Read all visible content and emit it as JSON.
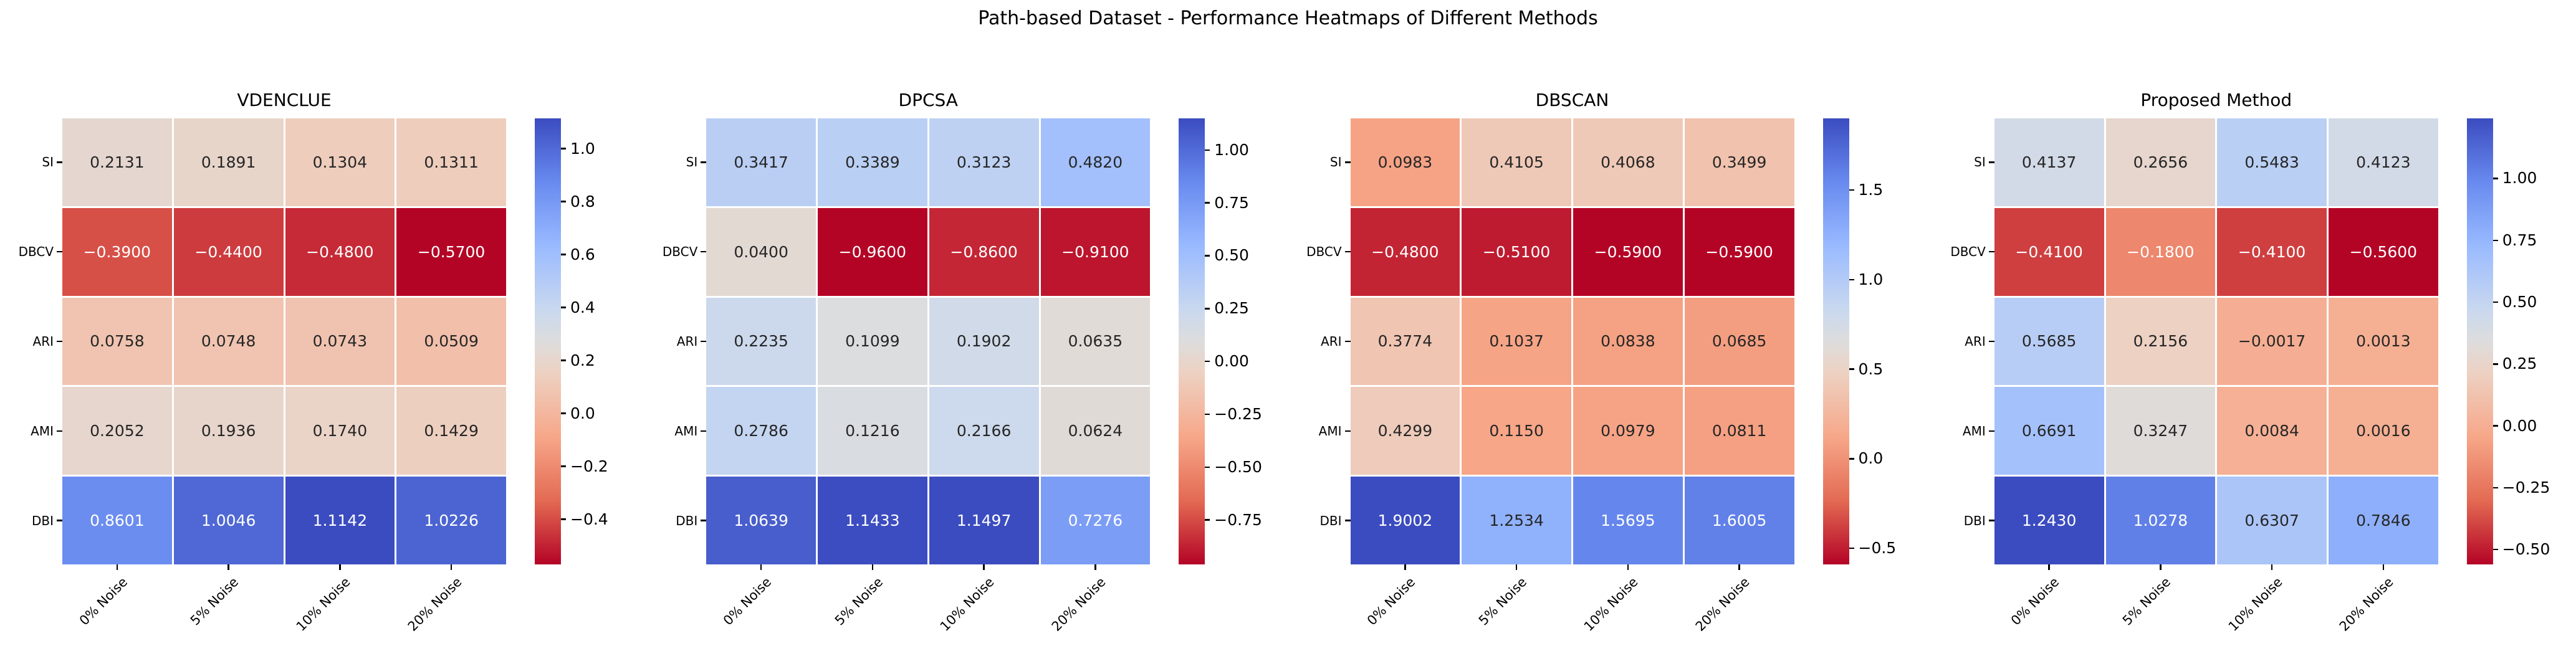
{
  "figure_title": "Path-based Dataset - Performance Heatmaps of Different Methods",
  "row_labels": [
    "SI",
    "DBCV",
    "ARI",
    "AMI",
    "DBI"
  ],
  "col_labels": [
    "0% Noise",
    "5% Noise",
    "10% Noise",
    "20% Noise"
  ],
  "colors": {
    "background": "#ffffff",
    "annotation_dark": "#262626",
    "annotation_light": "#ffffff",
    "tick_color": "#000000",
    "colormap_name": "coolwarm-reversed",
    "colormap_stops": [
      {
        "t": 0.0,
        "color": "#b40426"
      },
      {
        "t": 0.1429,
        "color": "#e36a53"
      },
      {
        "t": 0.2857,
        "color": "#f7a789"
      },
      {
        "t": 0.4286,
        "color": "#edd1c2"
      },
      {
        "t": 0.5,
        "color": "#dddddd"
      },
      {
        "t": 0.5714,
        "color": "#c9d8ef"
      },
      {
        "t": 0.7143,
        "color": "#99baff"
      },
      {
        "t": 0.8571,
        "color": "#688aef"
      },
      {
        "t": 1.0,
        "color": "#3b4cc0"
      }
    ]
  },
  "chart_data": [
    {
      "type": "heatmap",
      "title": "VDENCLUE",
      "rows": [
        "SI",
        "DBCV",
        "ARI",
        "AMI",
        "DBI"
      ],
      "columns": [
        "0% Noise",
        "5% Noise",
        "10% Noise",
        "20% Noise"
      ],
      "values": [
        [
          0.2131,
          0.1891,
          0.1304,
          0.1311
        ],
        [
          -0.39,
          -0.44,
          -0.48,
          -0.57
        ],
        [
          0.0758,
          0.0748,
          0.0743,
          0.0509
        ],
        [
          0.2052,
          0.1936,
          0.174,
          0.1429
        ],
        [
          0.8601,
          1.0046,
          1.1142,
          1.0226
        ]
      ],
      "value_decimals": 4,
      "colorbar_ticks": [
        1.0,
        0.8,
        0.6,
        0.4,
        0.2,
        0.0,
        -0.2,
        -0.4
      ],
      "tick_decimals": 1,
      "legend_position": "right"
    },
    {
      "type": "heatmap",
      "title": "DPCSA",
      "rows": [
        "SI",
        "DBCV",
        "ARI",
        "AMI",
        "DBI"
      ],
      "columns": [
        "0% Noise",
        "5% Noise",
        "10% Noise",
        "20% Noise"
      ],
      "values": [
        [
          0.3417,
          0.3389,
          0.3123,
          0.482
        ],
        [
          0.04,
          -0.96,
          -0.86,
          -0.91
        ],
        [
          0.2235,
          0.1099,
          0.1902,
          0.0635
        ],
        [
          0.2786,
          0.1216,
          0.2166,
          0.0624
        ],
        [
          1.0639,
          1.1433,
          1.1497,
          0.7276
        ]
      ],
      "value_decimals": 4,
      "colorbar_ticks": [
        1.0,
        0.75,
        0.5,
        0.25,
        0.0,
        -0.25,
        -0.5,
        -0.75
      ],
      "tick_decimals": 2,
      "legend_position": "right"
    },
    {
      "type": "heatmap",
      "title": "DBSCAN",
      "rows": [
        "SI",
        "DBCV",
        "ARI",
        "AMI",
        "DBI"
      ],
      "columns": [
        "0% Noise",
        "5% Noise",
        "10% Noise",
        "20% Noise"
      ],
      "values": [
        [
          0.0983,
          0.4105,
          0.4068,
          0.3499
        ],
        [
          -0.48,
          -0.51,
          -0.59,
          -0.59
        ],
        [
          0.3774,
          0.1037,
          0.0838,
          0.0685
        ],
        [
          0.4299,
          0.115,
          0.0979,
          0.0811
        ],
        [
          1.9002,
          1.2534,
          1.5695,
          1.6005
        ]
      ],
      "value_decimals": 4,
      "colorbar_ticks": [
        1.5,
        1.0,
        0.5,
        0.0,
        -0.5
      ],
      "tick_decimals": 1,
      "legend_position": "right"
    },
    {
      "type": "heatmap",
      "title": "Proposed Method",
      "rows": [
        "SI",
        "DBCV",
        "ARI",
        "AMI",
        "DBI"
      ],
      "columns": [
        "0% Noise",
        "5% Noise",
        "10% Noise",
        "20% Noise"
      ],
      "values": [
        [
          0.4137,
          0.2656,
          0.5483,
          0.4123
        ],
        [
          -0.41,
          -0.18,
          -0.41,
          -0.56
        ],
        [
          0.5685,
          0.2156,
          -0.0017,
          0.0013
        ],
        [
          0.6691,
          0.3247,
          0.0084,
          0.0016
        ],
        [
          1.243,
          1.0278,
          0.6307,
          0.7846
        ]
      ],
      "value_decimals": 4,
      "colorbar_ticks": [
        1.0,
        0.75,
        0.5,
        0.25,
        0.0,
        -0.25,
        -0.5
      ],
      "tick_decimals": 2,
      "legend_position": "right"
    }
  ]
}
